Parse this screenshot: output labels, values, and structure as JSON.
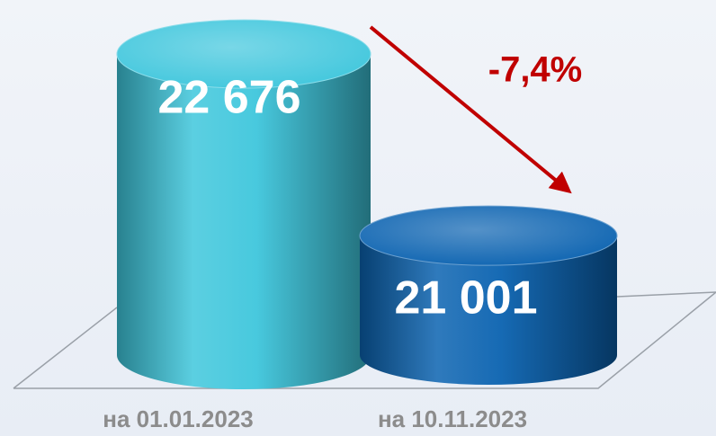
{
  "chart_data": {
    "type": "bar",
    "categories": [
      "на 01.01.2023",
      "на 10.11.2023"
    ],
    "values": [
      22676,
      21001
    ],
    "value_labels": [
      "22 676",
      "21 001"
    ],
    "colors": [
      "#3ec6dc",
      "#0a62b0"
    ],
    "ylim": [
      19900,
      23000
    ],
    "annotation": {
      "text": "-7,4%",
      "color": "#c00000"
    }
  }
}
